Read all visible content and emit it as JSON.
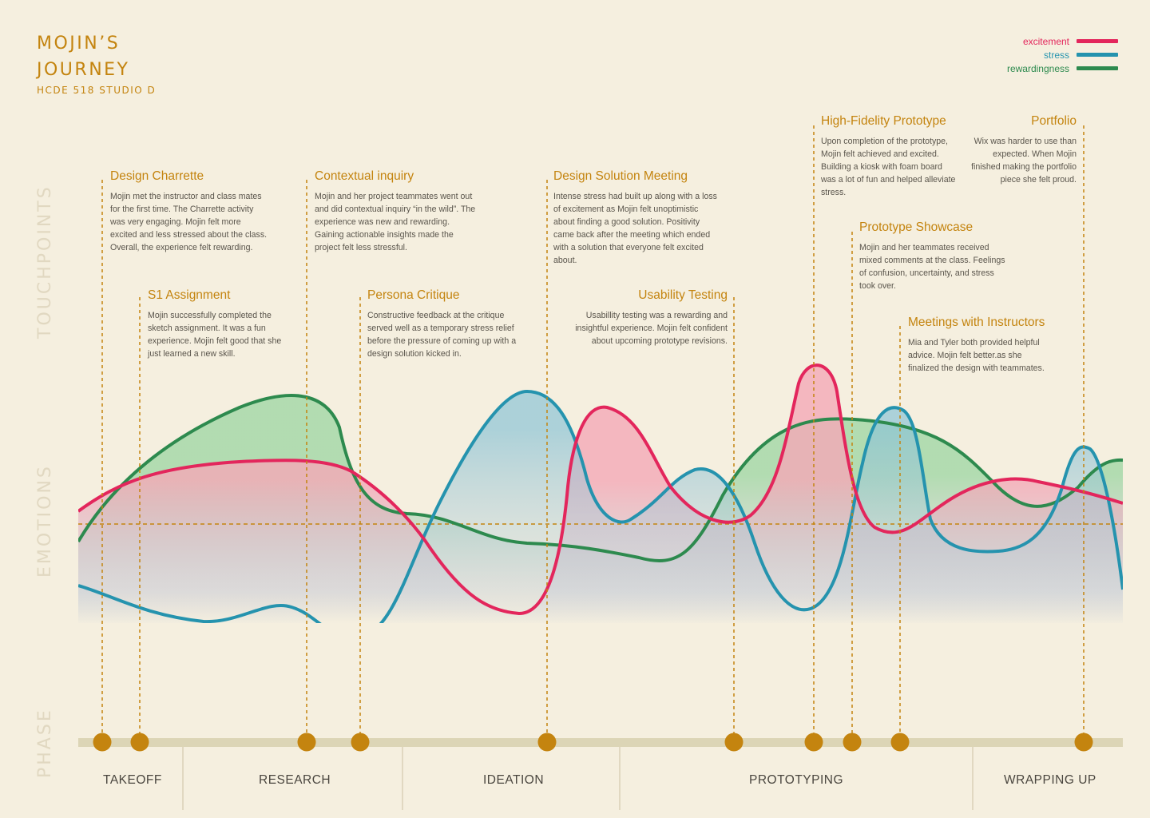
{
  "title_lines": [
    "MOJIN’S",
    "JOURNEY"
  ],
  "subtitle": "HCDE 518 STUDIO D",
  "legend": [
    {
      "label": "excitement",
      "color": "#e3265c"
    },
    {
      "label": "stress",
      "color": "#2593ae"
    },
    {
      "label": "rewardingness",
      "color": "#2d8a4e"
    }
  ],
  "side_labels": {
    "touchpoints": "TOUCHPOINTS",
    "emotions": "EMOTIONS",
    "phase": "PHASE"
  },
  "touchpoints": [
    {
      "title": "Design Charrette",
      "description": "Mojin met the instructor and class mates for the first time. The Charrette activity was very engaging. Mojin felt more excited and less stressed about the class. Overall, the experience felt rewarding."
    },
    {
      "title": "S1 Assignment",
      "description": "Mojin successfully completed the sketch assignment. It was a fun experience. Mojin felt good that she just learned a new skill."
    },
    {
      "title": "Contextual inquiry",
      "description": "Mojin and her project teammates went out and did contextual inquiry “in the wild”. The experience was new and rewarding. Gaining actionable insights made the project felt less stressful."
    },
    {
      "title": "Persona Critique",
      "description": "Constructive feedback at the critique served well as a temporary stress relief before the pressure of coming up with a design solution kicked in."
    },
    {
      "title": "Design Solution Meeting",
      "description": "Intense stress had built up along with a loss of excitement as Mojin felt unoptimistic about finding a good solution. Positivity came back after the meeting which ended with a solution that everyone felt excited about."
    },
    {
      "title": "Usability Testing",
      "description": "Usabillity testing was a rewarding and insightful experience. Mojin felt confident about upcoming prototype revisions."
    },
    {
      "title": "High-Fidelity Prototype",
      "description": "Upon completion of the prototype, Mojin felt achieved and excited. Building a kiosk with foam board was a lot of fun and helped alleviate stress."
    },
    {
      "title": "Prototype Showcase",
      "description": "Mojin and her teammates received mixed comments at the class. Feelings of confusion, uncertainty, and stress took over."
    },
    {
      "title": "Meetings with Instructors",
      "description": "Mia and Tyler both provided helpful advice. Mojin felt better.as she finalized the design with teammates."
    },
    {
      "title": "Portfolio",
      "description": "Wix was harder to use than expected. When Mojin finished making the portfolio piece she felt proud."
    }
  ],
  "phases": [
    "TAKEOFF",
    "RESEARCH",
    "IDEATION",
    "PROTOTYPING",
    "WRAPPING UP"
  ],
  "colors": {
    "accent": "#c4840f",
    "excitement": "#e3265c",
    "stress": "#2593ae",
    "rewardingness": "#2d8a4e",
    "background": "#f5efdf",
    "track": "#dcd5b6"
  }
}
